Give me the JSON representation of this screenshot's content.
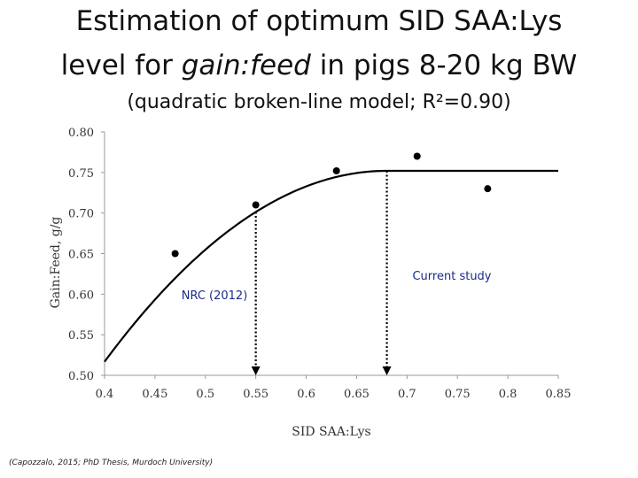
{
  "title": {
    "line1": "Estimation of optimum SID SAA:Lys",
    "line2_prefix": "level for ",
    "line2_em": "gain:feed",
    "line2_suffix": " in pigs 8-20 kg BW",
    "subtitle": "(quadratic broken-line model; R²=0.90)"
  },
  "citation": "(Capozzalo, 2015; PhD Thesis, Murdoch University)",
  "chart_data": {
    "type": "scatter",
    "xlabel": "SID SAA:Lys",
    "ylabel": "Gain:Feed, g/g",
    "xlim": [
      0.4,
      0.85
    ],
    "ylim": [
      0.5,
      0.8
    ],
    "xticks": [
      0.4,
      0.45,
      0.5,
      0.55,
      0.6,
      0.65,
      0.7,
      0.75,
      0.8,
      0.85
    ],
    "xtick_labels": [
      "0.4",
      "0.45",
      "0.5",
      "0.55",
      "0.6",
      "0.65",
      "0.7",
      "0.75",
      "0.8",
      "0.85"
    ],
    "yticks": [
      0.5,
      0.55,
      0.6,
      0.65,
      0.7,
      0.75,
      0.8
    ],
    "ytick_labels": [
      "0.50",
      "0.55",
      "0.60",
      "0.65",
      "0.70",
      "0.75",
      "0.80"
    ],
    "points": [
      {
        "x": 0.47,
        "y": 0.65
      },
      {
        "x": 0.55,
        "y": 0.71
      },
      {
        "x": 0.63,
        "y": 0.752
      },
      {
        "x": 0.71,
        "y": 0.77
      },
      {
        "x": 0.78,
        "y": 0.73
      }
    ],
    "fit": {
      "model": "quadratic broken-line",
      "breakpoint": 0.68,
      "plateau": 0.752,
      "quad_coef": -3.0,
      "x_start": 0.4,
      "x_end": 0.85
    },
    "reference_lines": [
      {
        "x": 0.55,
        "label": "NRC (2012)"
      },
      {
        "x": 0.68,
        "label": "Current study"
      }
    ],
    "colors": {
      "annotation": "#1a2b8c",
      "line": "#000000"
    }
  }
}
